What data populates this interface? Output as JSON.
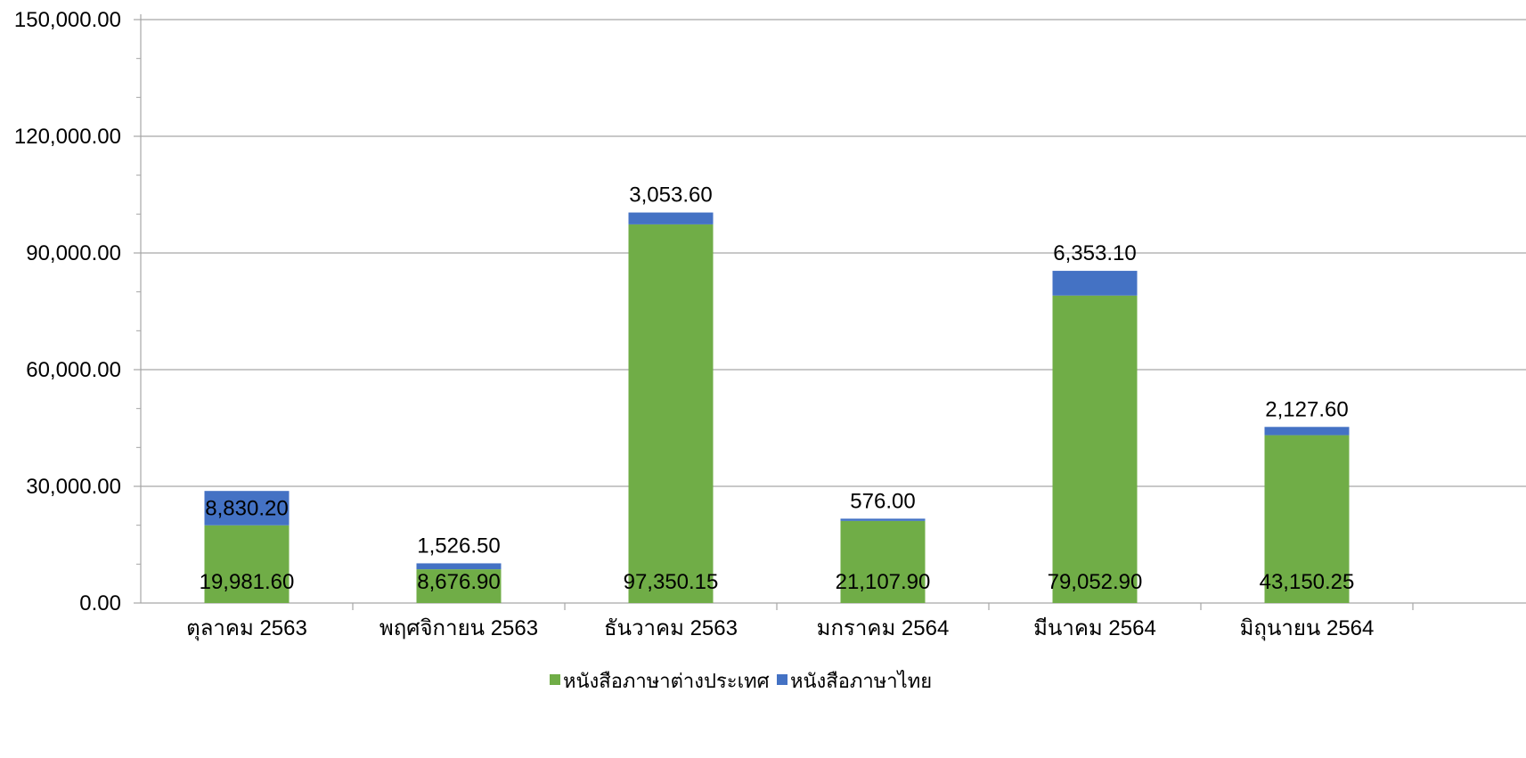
{
  "chart_data": {
    "type": "bar",
    "stacked": true,
    "title": "",
    "xlabel": "",
    "ylabel": "",
    "ylim": [
      0,
      150000
    ],
    "yticks": [
      "0.00",
      "30,000.00",
      "60,000.00",
      "90,000.00",
      "120,000.00",
      "150,000.00"
    ],
    "ytick_values": [
      0,
      30000,
      60000,
      90000,
      120000,
      150000
    ],
    "grid": true,
    "legend_position": "bottom",
    "categories": [
      "ตุลาคม 2563",
      "พฤศจิกายน 2563",
      "ธันวาคม 2563",
      "มกราคม 2564",
      "มีนาคม 2564",
      "มิถุนายน 2564"
    ],
    "series": [
      {
        "name": "หนังสือภาษาต่างประเทศ",
        "color": "#70ad47",
        "values": [
          19981.6,
          8676.9,
          97350.15,
          21107.9,
          79052.9,
          43150.25
        ],
        "labels": [
          "19,981.60",
          "8,676.90",
          "97,350.15",
          "21,107.90",
          "79,052.90",
          "43,150.25"
        ]
      },
      {
        "name": "หนังสือภาษาไทย",
        "color": "#4472c4",
        "values": [
          8830.2,
          1526.5,
          3053.6,
          576.0,
          6353.1,
          2127.6
        ],
        "labels": [
          "8,830.20",
          "1,526.50",
          "3,053.60",
          "576.00",
          "6,353.10",
          "2,127.60"
        ]
      }
    ]
  }
}
